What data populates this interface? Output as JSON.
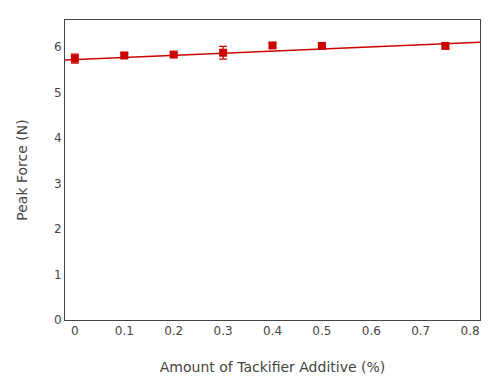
{
  "chart_data": {
    "type": "scatter",
    "xlabel": "Amount of Tackifier Additive (%)",
    "ylabel": "Peak Force (N)",
    "series": [
      {
        "type": "line",
        "color": "#cc0000",
        "line_style": "solid",
        "x": [
          -0.02,
          0.82
        ],
        "values": [
          5.72,
          6.11
        ]
      },
      {
        "type": "scatter",
        "color": "#cc0000",
        "marker": "square",
        "x": [
          0.0,
          0.1,
          0.2,
          0.3,
          0.4,
          0.5,
          0.75
        ],
        "values": [
          5.75,
          5.82,
          5.84,
          5.88,
          6.04,
          6.03,
          6.03
        ],
        "yerr": [
          0.1,
          0.05,
          0.05,
          0.14,
          0.05,
          0.04,
          0.06
        ]
      }
    ],
    "xlim": [
      -0.02,
      0.82
    ],
    "xticks": [
      0,
      0.1,
      0.2,
      0.3,
      0.4,
      0.5,
      0.6,
      0.7,
      0.8
    ],
    "ylim": [
      0,
      6.6
    ],
    "yticks": [
      0,
      1,
      2,
      3,
      4,
      5,
      6
    ],
    "grid": false
  }
}
